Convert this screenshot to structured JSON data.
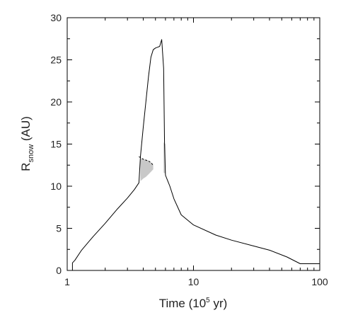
{
  "chart_data": {
    "type": "line",
    "xlabel": {
      "pre": "Time (10",
      "sup": "5",
      "post": " yr)"
    },
    "ylabel": {
      "main": "R",
      "sub": "snow",
      "post": " (AU)"
    },
    "xscale": "log",
    "xlim": [
      1,
      100
    ],
    "ylim": [
      0,
      30
    ],
    "xticks": [
      1,
      10,
      100
    ],
    "xtick_labels": [
      "1",
      "10",
      "100"
    ],
    "yticks": [
      0,
      5,
      10,
      15,
      20,
      25,
      30
    ],
    "ytick_labels": [
      "0",
      "5",
      "10",
      "15",
      "20",
      "25",
      "30"
    ],
    "grid": false,
    "series": [
      {
        "style": "solid",
        "color": "#000000",
        "x": [
          1.1,
          1.1,
          1.15,
          1.3,
          1.6,
          2.0,
          2.5,
          3.0,
          3.4,
          3.7,
          3.7,
          3.8,
          4.0,
          4.2,
          4.4,
          4.6,
          4.8,
          5.0,
          5.2,
          5.4,
          5.6,
          5.8,
          5.9,
          6.0,
          6.0,
          6.5,
          7.0,
          8.0,
          10,
          15,
          20,
          30,
          40,
          55,
          70,
          100
        ],
        "y": [
          0.0,
          0.9,
          1.2,
          2.4,
          4.0,
          5.6,
          7.3,
          8.6,
          9.6,
          10.4,
          10.4,
          13.5,
          17.0,
          20.0,
          23.0,
          25.3,
          26.2,
          26.4,
          26.5,
          26.6,
          27.4,
          24.0,
          15.0,
          11.3,
          11.3,
          10.0,
          8.5,
          6.6,
          5.4,
          4.2,
          3.6,
          2.9,
          2.4,
          1.6,
          0.8,
          0.8
        ]
      },
      {
        "style": "dashed",
        "color": "#000000",
        "x": [
          3.7,
          4.0,
          4.2,
          4.4,
          4.6,
          4.8
        ],
        "y": [
          13.5,
          13.2,
          13.1,
          13.0,
          12.8,
          12.5
        ]
      }
    ],
    "shaded_regions": [
      {
        "fill": "#c8c8c8",
        "x": [
          3.8,
          4.0,
          4.2,
          4.4,
          4.6,
          4.8,
          4.8,
          4.6,
          4.4,
          4.2,
          4.0,
          3.8
        ],
        "y": [
          13.3,
          13.2,
          13.1,
          13.0,
          12.8,
          12.5,
          12.0,
          11.7,
          11.4,
          11.1,
          10.9,
          10.6
        ]
      },
      {
        "fill": "#c8c8c8",
        "x": [
          5.8,
          6.0,
          6.0,
          5.8
        ],
        "y": [
          15.2,
          15.0,
          11.5,
          11.6
        ]
      }
    ]
  }
}
